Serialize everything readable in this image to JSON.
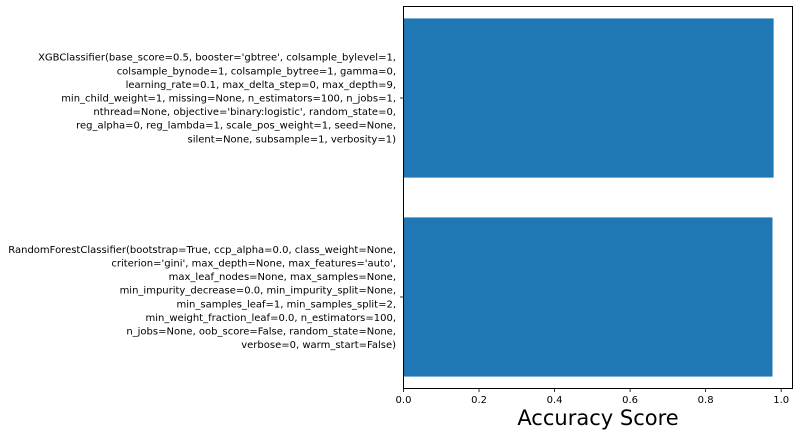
{
  "chart_data": {
    "type": "bar",
    "orientation": "horizontal",
    "categories": [
      [
        "RandomForestClassifier(bootstrap=True, ccp_alpha=0.0, class_weight=None,",
        "criterion='gini', max_depth=None, max_features='auto',",
        "max_leaf_nodes=None, max_samples=None,",
        "min_impurity_decrease=0.0, min_impurity_split=None,",
        "min_samples_leaf=1, min_samples_split=2,",
        "min_weight_fraction_leaf=0.0, n_estimators=100,",
        "n_jobs=None, oob_score=False, random_state=None,",
        "verbose=0, warm_start=False)"
      ],
      [
        "XGBClassifier(base_score=0.5, booster='gbtree', colsample_bylevel=1,",
        "colsample_bynode=1, colsample_bytree=1, gamma=0,",
        "learning_rate=0.1, max_delta_step=0, max_depth=9,",
        "min_child_weight=1, missing=None, n_estimators=100, n_jobs=1,",
        "nthread=None, objective='binary:logistic', random_state=0,",
        "reg_alpha=0, reg_lambda=1, scale_pos_weight=1, seed=None,",
        "silent=None, subsample=1, verbosity=1)"
      ]
    ],
    "values": [
      0.977,
      0.98
    ],
    "xlabel": "Accuracy Score",
    "ylabel": "",
    "title": "",
    "xlim": [
      0,
      1.03
    ],
    "xticks": [
      0.0,
      0.2,
      0.4,
      0.6,
      0.8,
      1.0
    ],
    "xtick_labels": [
      "0.0",
      "0.2",
      "0.4",
      "0.6",
      "0.8",
      "1.0"
    ],
    "bar_color": "#1f77b4",
    "grid": false,
    "legend": "none"
  }
}
